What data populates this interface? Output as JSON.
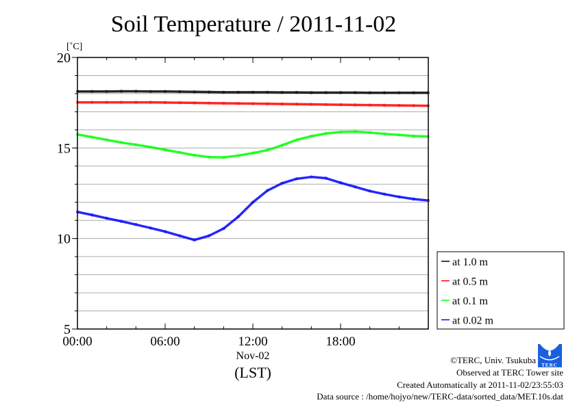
{
  "chart_data": {
    "type": "line",
    "title": "Soil Temperature / 2011-11-02",
    "ylabel": "[˚C]",
    "xlabel_date": "Nov-02",
    "xlabel": "(LST)",
    "ylim": [
      5,
      20
    ],
    "yticks": [
      5,
      10,
      15,
      20
    ],
    "xlim": [
      0,
      24
    ],
    "xticks": [
      {
        "v": 0,
        "label": "00:00"
      },
      {
        "v": 6,
        "label": "06:00"
      },
      {
        "v": 12,
        "label": "12:00"
      },
      {
        "v": 18,
        "label": "18:00"
      }
    ],
    "grid": true,
    "legend_position": "bottom-right-outside",
    "x": [
      0,
      1,
      2,
      3,
      4,
      5,
      6,
      7,
      8,
      9,
      10,
      11,
      12,
      13,
      14,
      15,
      16,
      17,
      18,
      19,
      20,
      21,
      22,
      23,
      24
    ],
    "series": [
      {
        "name": "at 1.0 m",
        "color": "#000000",
        "values": [
          18.12,
          18.12,
          18.12,
          18.13,
          18.13,
          18.12,
          18.12,
          18.11,
          18.1,
          18.09,
          18.08,
          18.08,
          18.08,
          18.08,
          18.07,
          18.07,
          18.06,
          18.06,
          18.06,
          18.06,
          18.05,
          18.05,
          18.05,
          18.05,
          18.05
        ]
      },
      {
        "name": "at 0.5 m",
        "color": "#ff0000",
        "values": [
          17.52,
          17.52,
          17.52,
          17.52,
          17.52,
          17.52,
          17.51,
          17.5,
          17.49,
          17.48,
          17.47,
          17.46,
          17.45,
          17.44,
          17.43,
          17.42,
          17.41,
          17.4,
          17.39,
          17.38,
          17.37,
          17.36,
          17.35,
          17.34,
          17.33
        ]
      },
      {
        "name": "at 0.1 m",
        "color": "#00ff00",
        "values": [
          15.75,
          15.6,
          15.45,
          15.3,
          15.18,
          15.05,
          14.9,
          14.75,
          14.6,
          14.5,
          14.48,
          14.58,
          14.72,
          14.88,
          15.15,
          15.45,
          15.65,
          15.8,
          15.88,
          15.9,
          15.85,
          15.78,
          15.72,
          15.66,
          15.63
        ]
      },
      {
        "name": "at 0.02 m",
        "color": "#0000ff",
        "values": [
          11.47,
          11.3,
          11.12,
          10.95,
          10.77,
          10.58,
          10.38,
          10.15,
          9.92,
          10.15,
          10.55,
          11.2,
          12.0,
          12.65,
          13.05,
          13.3,
          13.4,
          13.33,
          13.08,
          12.85,
          12.62,
          12.45,
          12.3,
          12.18,
          12.1
        ]
      }
    ]
  },
  "footer": {
    "copyright": "©TERC, Univ. Tsukuba",
    "observed": "Observed at TERC Tower site",
    "created": "Created Automatically at 2011-11-02/23:55:03",
    "source": "Data source : /home/hojyo/new/TERC-data/sorted_data/MET.10s.dat",
    "logo_text": "TERC"
  }
}
